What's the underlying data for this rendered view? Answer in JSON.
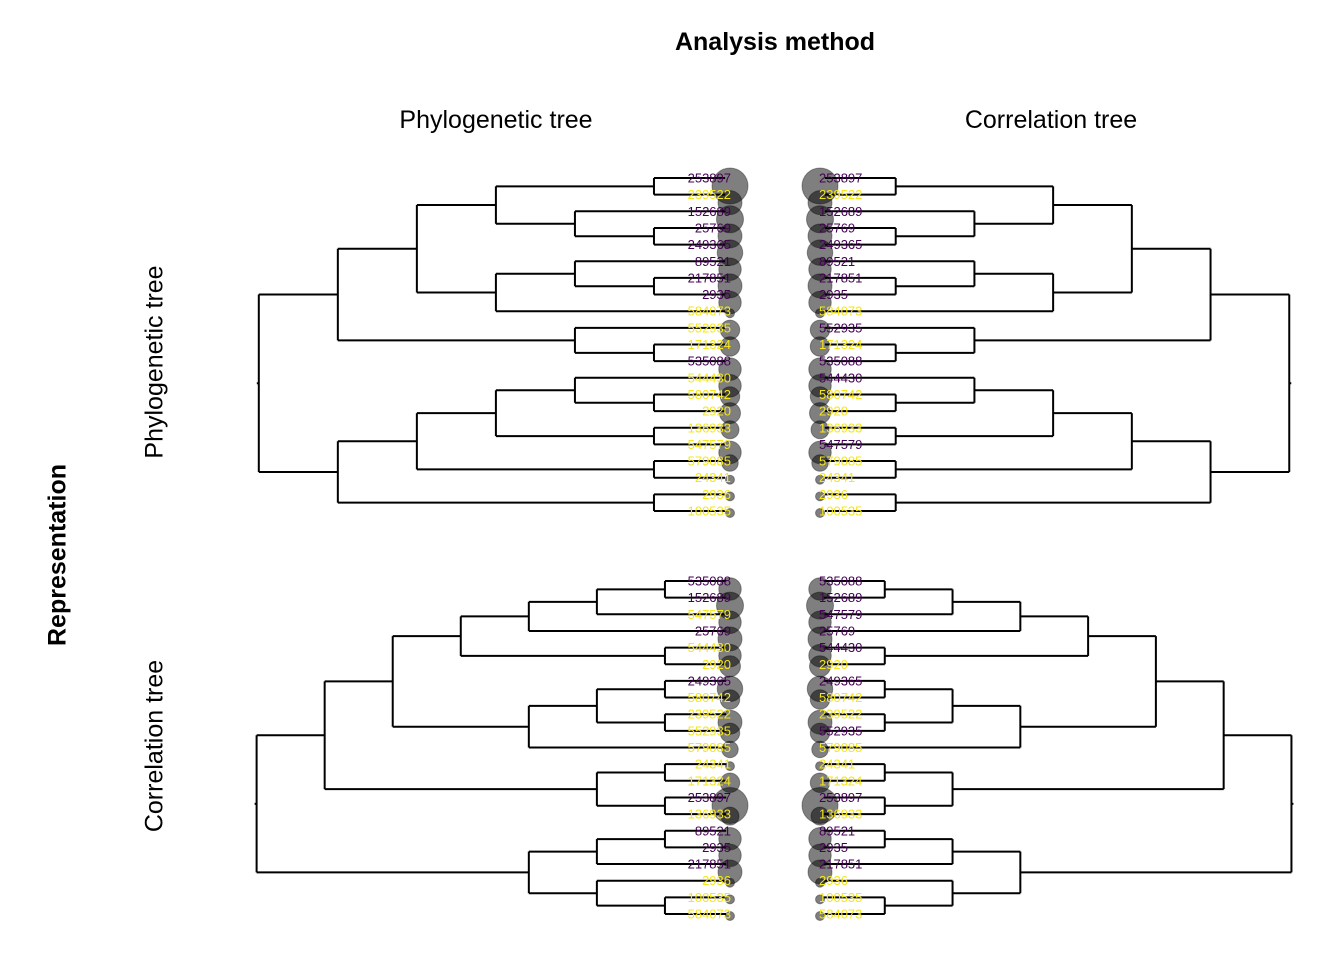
{
  "title": "Analysis method",
  "col_labels": [
    "Phylogenetic tree",
    "Correlation tree"
  ],
  "row_title": "Representation",
  "row_labels": [
    "Phylogenetic tree",
    "Correlation tree"
  ],
  "colors": {
    "dark": "#440154",
    "light": "#f5e61a",
    "line": "#000000",
    "dot": "#000000"
  },
  "panels": [
    {
      "tips": [
        {
          "label": "253897",
          "c": "dark",
          "s": 1.0
        },
        {
          "label": "239522",
          "c": "light",
          "s": 0.6
        },
        {
          "label": "152689",
          "c": "dark",
          "s": 0.7
        },
        {
          "label": "25769",
          "c": "dark",
          "s": 0.6
        },
        {
          "label": "249365",
          "c": "dark",
          "s": 0.65
        },
        {
          "label": "89521",
          "c": "dark",
          "s": 0.55
        },
        {
          "label": "217851",
          "c": "dark",
          "s": 0.6
        },
        {
          "label": "2935",
          "c": "dark",
          "s": 0.55
        },
        {
          "label": "584073",
          "c": "light",
          "s": 0.1
        },
        {
          "label": "552935",
          "c": "light",
          "s": 0.45
        },
        {
          "label": "171324",
          "c": "light",
          "s": 0.45
        },
        {
          "label": "535088",
          "c": "dark",
          "s": 0.55
        },
        {
          "label": "544430",
          "c": "light",
          "s": 0.55
        },
        {
          "label": "580742",
          "c": "light",
          "s": 0.45
        },
        {
          "label": "2920",
          "c": "light",
          "s": 0.5
        },
        {
          "label": "136933",
          "c": "light",
          "s": 0.4
        },
        {
          "label": "547579",
          "c": "light",
          "s": 0.55
        },
        {
          "label": "579085",
          "c": "light",
          "s": 0.35
        },
        {
          "label": "24341",
          "c": "light",
          "s": 0.1
        },
        {
          "label": "2936",
          "c": "light",
          "s": 0.1
        },
        {
          "label": "100535",
          "c": "light",
          "s": 0.1
        }
      ],
      "tree": [
        [
          [
            [
              [
                "0",
                "1"
              ],
              [
                "2",
                [
                  "3",
                  "4"
                ]
              ]
            ],
            [
              [
                "5",
                [
                  "6",
                  "7"
                ]
              ],
              "8"
            ]
          ],
          [
            "9",
            [
              "10",
              "11"
            ]
          ]
        ],
        [
          [
            [
              [
                "12",
                [
                  "13",
                  "14"
                ]
              ],
              [
                "15",
                "16"
              ]
            ],
            [
              "17",
              "18"
            ]
          ],
          [
            "19",
            "20"
          ]
        ]
      ]
    },
    {
      "tips": [
        {
          "label": "253897",
          "c": "dark",
          "s": 1.0
        },
        {
          "label": "239522",
          "c": "light",
          "s": 0.6
        },
        {
          "label": "152689",
          "c": "dark",
          "s": 0.7
        },
        {
          "label": "25769",
          "c": "dark",
          "s": 0.6
        },
        {
          "label": "249365",
          "c": "dark",
          "s": 0.65
        },
        {
          "label": "89521",
          "c": "dark",
          "s": 0.55
        },
        {
          "label": "217851",
          "c": "dark",
          "s": 0.6
        },
        {
          "label": "2935",
          "c": "dark",
          "s": 0.55
        },
        {
          "label": "584073",
          "c": "light",
          "s": 0.1
        },
        {
          "label": "552935",
          "c": "dark",
          "s": 0.45
        },
        {
          "label": "171324",
          "c": "light",
          "s": 0.45
        },
        {
          "label": "535088",
          "c": "dark",
          "s": 0.55
        },
        {
          "label": "544430",
          "c": "dark",
          "s": 0.55
        },
        {
          "label": "580742",
          "c": "light",
          "s": 0.45
        },
        {
          "label": "2920",
          "c": "light",
          "s": 0.5
        },
        {
          "label": "136933",
          "c": "light",
          "s": 0.4
        },
        {
          "label": "547579",
          "c": "dark",
          "s": 0.55
        },
        {
          "label": "579085",
          "c": "light",
          "s": 0.35
        },
        {
          "label": "24341",
          "c": "light",
          "s": 0.1
        },
        {
          "label": "2936",
          "c": "light",
          "s": 0.1
        },
        {
          "label": "100535",
          "c": "light",
          "s": 0.1
        }
      ],
      "tree": [
        [
          [
            [
              [
                "0",
                "1"
              ],
              [
                "2",
                [
                  "3",
                  "4"
                ]
              ]
            ],
            [
              [
                "5",
                [
                  "6",
                  "7"
                ]
              ],
              "8"
            ]
          ],
          [
            "9",
            [
              "10",
              "11"
            ]
          ]
        ],
        [
          [
            [
              [
                "12",
                [
                  "13",
                  "14"
                ]
              ],
              [
                "15",
                "16"
              ]
            ],
            [
              "17",
              "18"
            ]
          ],
          [
            "19",
            "20"
          ]
        ]
      ]
    },
    {
      "tips": [
        {
          "label": "535088",
          "c": "dark",
          "s": 0.55
        },
        {
          "label": "152689",
          "c": "dark",
          "s": 0.7
        },
        {
          "label": "547579",
          "c": "light",
          "s": 0.55
        },
        {
          "label": "25769",
          "c": "dark",
          "s": 0.6
        },
        {
          "label": "544430",
          "c": "light",
          "s": 0.55
        },
        {
          "label": "2920",
          "c": "light",
          "s": 0.5
        },
        {
          "label": "249365",
          "c": "dark",
          "s": 0.65
        },
        {
          "label": "580742",
          "c": "light",
          "s": 0.45
        },
        {
          "label": "239522",
          "c": "light",
          "s": 0.6
        },
        {
          "label": "552935",
          "c": "light",
          "s": 0.45
        },
        {
          "label": "579085",
          "c": "light",
          "s": 0.35
        },
        {
          "label": "24341",
          "c": "light",
          "s": 0.1
        },
        {
          "label": "171324",
          "c": "light",
          "s": 0.45
        },
        {
          "label": "253897",
          "c": "dark",
          "s": 1.0
        },
        {
          "label": "136933",
          "c": "light",
          "s": 0.4
        },
        {
          "label": "89521",
          "c": "dark",
          "s": 0.55
        },
        {
          "label": "2935",
          "c": "dark",
          "s": 0.55
        },
        {
          "label": "217851",
          "c": "dark",
          "s": 0.6
        },
        {
          "label": "2936",
          "c": "light",
          "s": 0.1
        },
        {
          "label": "100535",
          "c": "light",
          "s": 0.1
        },
        {
          "label": "584073",
          "c": "light",
          "s": 0.1
        }
      ],
      "tree": [
        [
          [
            [
              [
                [
                  [
                    "0",
                    "1"
                  ],
                  "2"
                ],
                "3"
              ],
              [
                "4",
                "5"
              ]
            ],
            [
              [
                [
                  "6",
                  "7"
                ],
                [
                  "8",
                  "9"
                ]
              ],
              "10"
            ]
          ],
          [
            [
              "11",
              "12"
            ],
            [
              "13",
              "14"
            ]
          ]
        ],
        [
          [
            [
              "15",
              "16"
            ],
            "17"
          ],
          [
            "18",
            [
              "19",
              "20"
            ]
          ]
        ]
      ]
    },
    {
      "tips": [
        {
          "label": "535088",
          "c": "dark",
          "s": 0.55
        },
        {
          "label": "152689",
          "c": "dark",
          "s": 0.7
        },
        {
          "label": "547579",
          "c": "dark",
          "s": 0.55
        },
        {
          "label": "25769",
          "c": "dark",
          "s": 0.6
        },
        {
          "label": "544430",
          "c": "dark",
          "s": 0.55
        },
        {
          "label": "2920",
          "c": "light",
          "s": 0.5
        },
        {
          "label": "249365",
          "c": "dark",
          "s": 0.65
        },
        {
          "label": "580742",
          "c": "light",
          "s": 0.45
        },
        {
          "label": "239522",
          "c": "light",
          "s": 0.6
        },
        {
          "label": "552935",
          "c": "dark",
          "s": 0.45
        },
        {
          "label": "579085",
          "c": "light",
          "s": 0.35
        },
        {
          "label": "24341",
          "c": "light",
          "s": 0.1
        },
        {
          "label": "171324",
          "c": "light",
          "s": 0.45
        },
        {
          "label": "253897",
          "c": "dark",
          "s": 1.0
        },
        {
          "label": "136933",
          "c": "light",
          "s": 0.4
        },
        {
          "label": "89521",
          "c": "dark",
          "s": 0.55
        },
        {
          "label": "2935",
          "c": "dark",
          "s": 0.55
        },
        {
          "label": "217851",
          "c": "dark",
          "s": 0.6
        },
        {
          "label": "2936",
          "c": "light",
          "s": 0.1
        },
        {
          "label": "100535",
          "c": "light",
          "s": 0.1
        },
        {
          "label": "584073",
          "c": "light",
          "s": 0.1
        }
      ],
      "tree": [
        [
          [
            [
              [
                [
                  [
                    "0",
                    "1"
                  ],
                  "2"
                ],
                "3"
              ],
              [
                "4",
                "5"
              ]
            ],
            [
              [
                [
                  "6",
                  "7"
                ],
                [
                  "8",
                  "9"
                ]
              ],
              "10"
            ]
          ],
          [
            [
              "11",
              "12"
            ],
            [
              "13",
              "14"
            ]
          ]
        ],
        [
          [
            [
              "15",
              "16"
            ],
            "17"
          ],
          [
            "18",
            [
              "19",
              "20"
            ]
          ]
        ]
      ]
    }
  ]
}
